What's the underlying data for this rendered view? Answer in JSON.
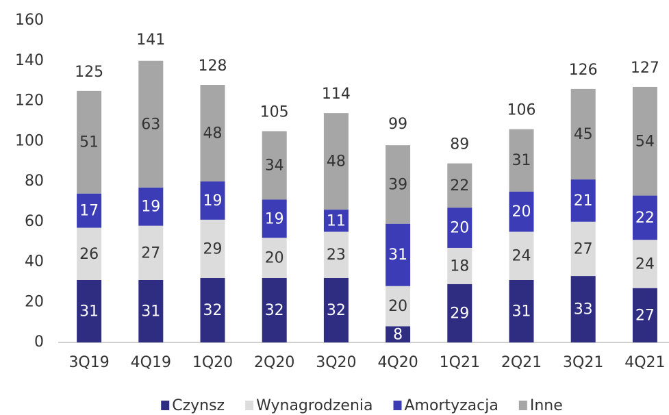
{
  "chart_data": {
    "type": "stacked_bar",
    "categories": [
      "3Q19",
      "4Q19",
      "1Q20",
      "2Q20",
      "3Q20",
      "4Q20",
      "1Q21",
      "2Q21",
      "3Q21",
      "4Q21"
    ],
    "series": [
      {
        "name": "Czynsz",
        "color": "#2e2d82",
        "label_color": "#ffffff",
        "values": [
          31,
          31,
          32,
          32,
          32,
          8,
          29,
          31,
          33,
          27
        ]
      },
      {
        "name": "Wynagrodzenia",
        "color": "#dcdcdc",
        "label_color": "#333333",
        "values": [
          26,
          27,
          29,
          20,
          23,
          20,
          18,
          24,
          27,
          24
        ]
      },
      {
        "name": "Amortyzacja",
        "color": "#3b3cb6",
        "label_color": "#ffffff",
        "values": [
          17,
          19,
          19,
          19,
          11,
          31,
          20,
          20,
          21,
          22
        ]
      },
      {
        "name": "Inne",
        "color": "#a6a6a6",
        "label_color": "#333333",
        "values": [
          51,
          63,
          48,
          34,
          48,
          39,
          22,
          31,
          45,
          54
        ]
      }
    ],
    "totals": [
      125,
      141,
      128,
      105,
      114,
      99,
      89,
      106,
      126,
      127
    ],
    "ylim": [
      0,
      160
    ],
    "yticks": [
      0,
      20,
      40,
      60,
      80,
      100,
      120,
      140,
      160
    ],
    "grid": false,
    "legend": "bottom"
  }
}
